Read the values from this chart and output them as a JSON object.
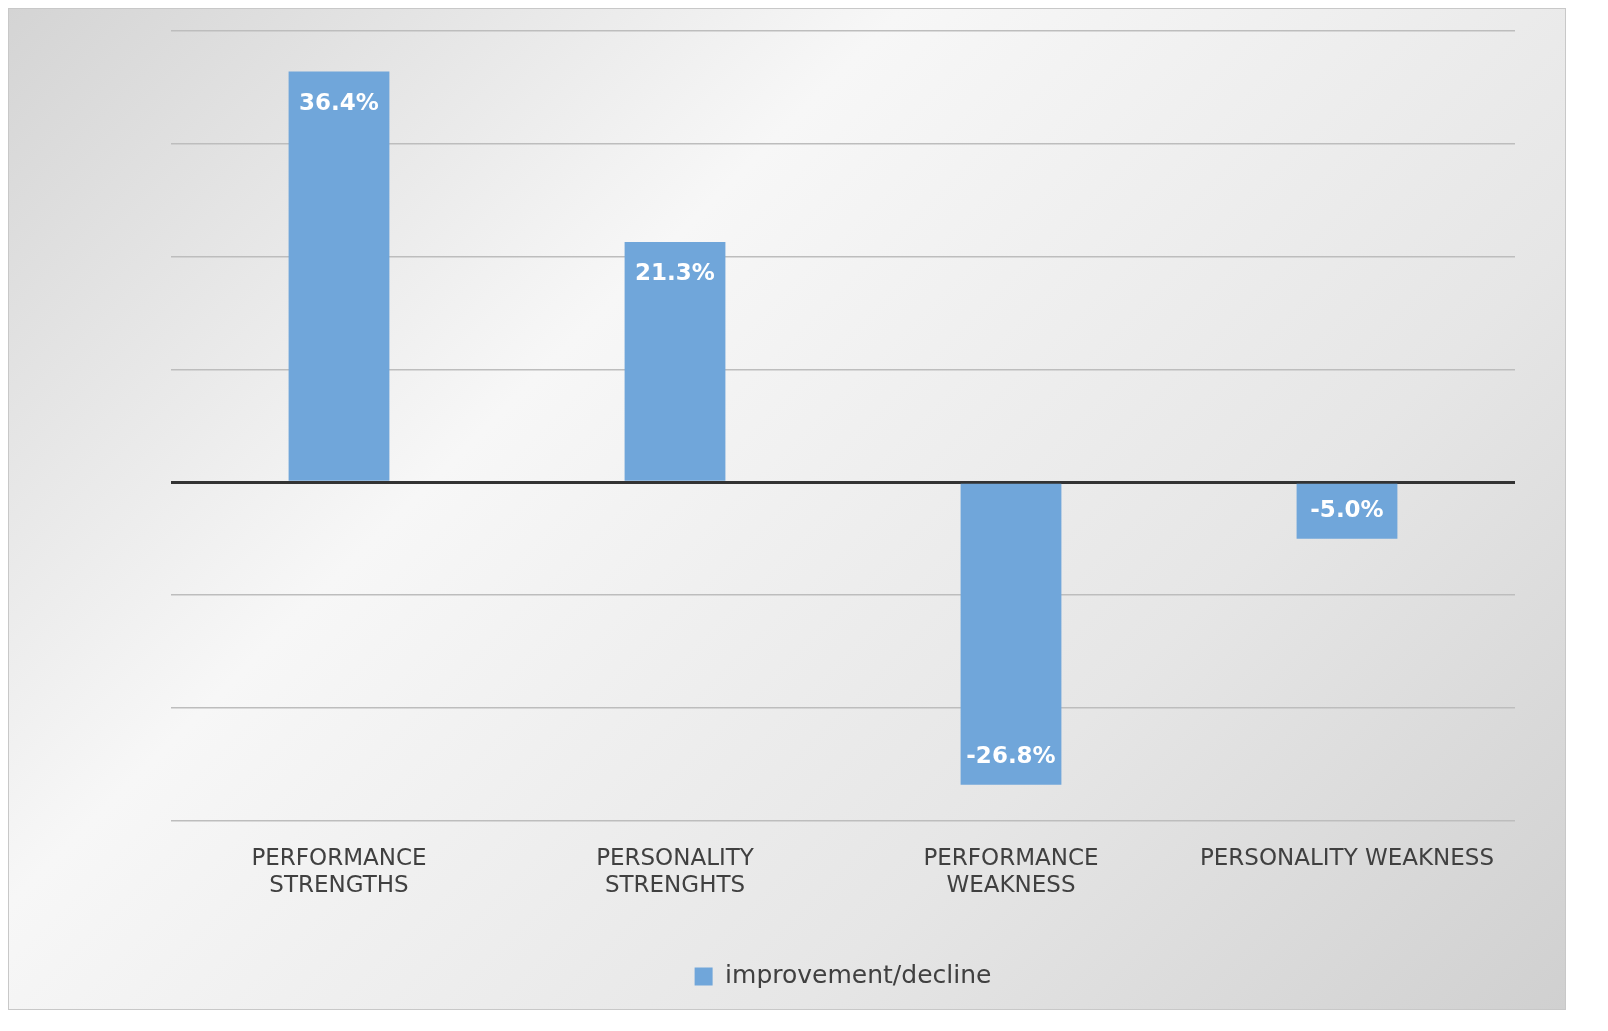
{
  "chart_data": {
    "type": "bar",
    "categories": [
      "PERFORMANCE STRENGTHS",
      "PERSONALITY STRENGHTS",
      "PERFORMANCE WEAKNESS",
      "PERSONALITY WEAKNESS"
    ],
    "series": [
      {
        "name": "improvement/decline",
        "color": "#70a6da",
        "values": [
          36.4,
          21.3,
          -26.8,
          -5.0
        ],
        "value_labels": [
          "36.4%",
          "21.3%",
          "-26.8%",
          "-5.0%"
        ]
      }
    ],
    "tick_labels": "x",
    "grid": "y",
    "legend": "bottom"
  }
}
